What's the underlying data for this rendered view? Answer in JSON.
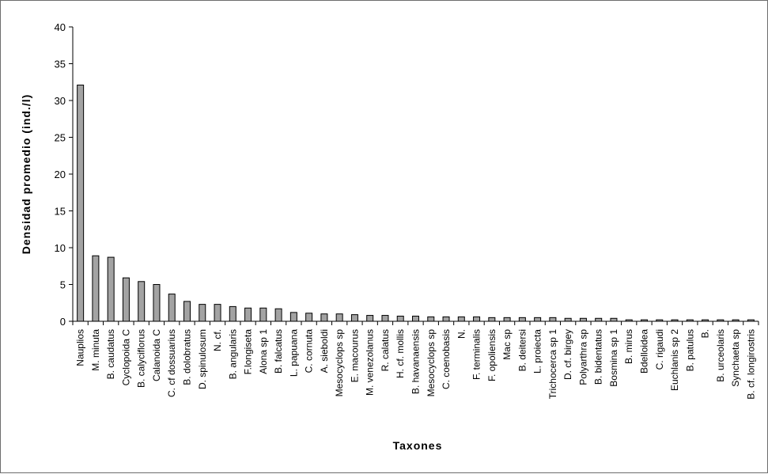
{
  "chart_data": {
    "type": "bar",
    "title": "",
    "xlabel": "Taxones",
    "ylabel": "Densidad promedio (ind./l)",
    "ylim": [
      0,
      40
    ],
    "yticks": [
      0,
      5,
      10,
      15,
      20,
      25,
      30,
      35,
      40
    ],
    "grid": false,
    "legend": "none",
    "bar_color": "#a3a3a3",
    "categories": [
      "Nauplios",
      "M. minuta",
      "B. caudatus",
      "Cyclopoida C",
      "B. calyciflorus",
      "Calanoida C",
      "C. cf dossuarius",
      "B. dolobratus",
      "D. spinulosum",
      "N. cf.",
      "B. angularis",
      "F.longiseta",
      "Alona sp 1",
      "B. falcatus",
      "L. papuana",
      "C. cornuta",
      "A. sieboldi",
      "Mesocyclops sp",
      "E. macourus",
      "M. venezolanus",
      "R. calatus",
      "H. cf. mollis",
      "B. havanaensis",
      "Mesocyclops sp",
      "C. coenobasis",
      "N.",
      "F. terminalis",
      "F. opoliensis",
      "Mac sp",
      "B. deitersi",
      "L. proiecta",
      "Trichocerca sp 1",
      "D. cf. birgey",
      "Polyarthra sp",
      "B. bidentatus",
      "Bosmina sp 1",
      "B. mirus",
      "Bdelloidea",
      "C. rigaudi",
      "Euchlanis sp 2",
      "B. patulus",
      "B.",
      "B. urceolaris",
      "Synchaeta sp",
      "B. cf. longirostris"
    ],
    "values": [
      32.1,
      8.9,
      8.7,
      5.9,
      5.4,
      5.0,
      3.7,
      2.7,
      2.3,
      2.3,
      2.0,
      1.8,
      1.8,
      1.7,
      1.2,
      1.1,
      1.0,
      1.0,
      0.9,
      0.8,
      0.8,
      0.7,
      0.7,
      0.6,
      0.6,
      0.6,
      0.6,
      0.5,
      0.5,
      0.5,
      0.5,
      0.5,
      0.4,
      0.4,
      0.4,
      0.4,
      0.2,
      0.2,
      0.2,
      0.2,
      0.2,
      0.2,
      0.2,
      0.2,
      0.2
    ]
  }
}
